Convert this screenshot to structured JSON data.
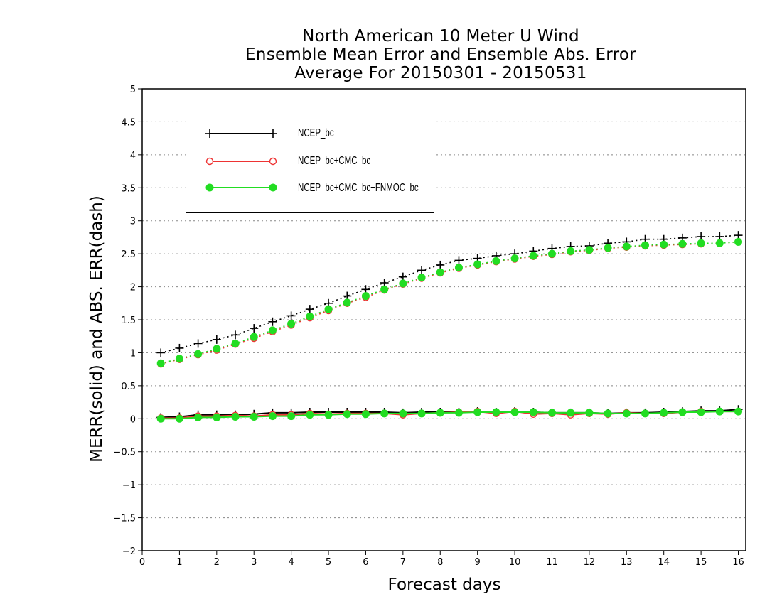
{
  "chart_data": {
    "type": "line",
    "title": [
      "North American 10 Meter U Wind",
      "Ensemble Mean Error and Ensemble Abs. Error",
      "Average For 20150301 - 20150531"
    ],
    "xlabel": "Forecast days",
    "ylabel": "MERR(solid) and ABS. ERR(dash)",
    "xlim": [
      0,
      16.2
    ],
    "ylim": [
      -2,
      5
    ],
    "xticks": [
      0,
      1,
      2,
      3,
      4,
      5,
      6,
      7,
      8,
      9,
      10,
      11,
      12,
      13,
      14,
      15,
      16
    ],
    "yticks": [
      -2,
      -1.5,
      -1,
      -0.5,
      0,
      0.5,
      1,
      1.5,
      2,
      2.5,
      3,
      3.5,
      4,
      4.5,
      5
    ],
    "grid": "horizontal dotted",
    "legend_position": "top-left",
    "x": [
      0.5,
      1,
      1.5,
      2,
      2.5,
      3,
      3.5,
      4,
      4.5,
      5,
      5.5,
      6,
      6.5,
      7,
      7.5,
      8,
      8.5,
      9,
      9.5,
      10,
      10.5,
      11,
      11.5,
      12,
      12.5,
      13,
      13.5,
      14,
      14.5,
      15,
      15.5,
      16
    ],
    "series": [
      {
        "name": "NCEP_bc",
        "color": "#000000",
        "marker": "plus",
        "merr": [
          0.02,
          0.03,
          0.06,
          0.06,
          0.06,
          0.07,
          0.09,
          0.09,
          0.1,
          0.1,
          0.1,
          0.1,
          0.1,
          0.09,
          0.1,
          0.1,
          0.1,
          0.11,
          0.1,
          0.11,
          0.1,
          0.09,
          0.09,
          0.09,
          0.08,
          0.09,
          0.09,
          0.1,
          0.11,
          0.12,
          0.12,
          0.14
        ],
        "abs_err": [
          1.0,
          1.07,
          1.14,
          1.2,
          1.27,
          1.37,
          1.47,
          1.56,
          1.66,
          1.75,
          1.86,
          1.96,
          2.06,
          2.15,
          2.25,
          2.33,
          2.4,
          2.43,
          2.47,
          2.5,
          2.54,
          2.58,
          2.61,
          2.62,
          2.66,
          2.68,
          2.72,
          2.72,
          2.74,
          2.76,
          2.76,
          2.78
        ]
      },
      {
        "name": "NCEP_bc+CMC_bc",
        "color": "#ee3333",
        "marker": "open-circle",
        "merr": [
          0.01,
          0.01,
          0.04,
          0.04,
          0.05,
          0.04,
          0.06,
          0.06,
          0.08,
          0.07,
          0.08,
          0.08,
          0.08,
          0.06,
          0.08,
          0.09,
          0.1,
          0.11,
          0.08,
          0.11,
          0.07,
          0.08,
          0.06,
          0.08,
          0.07,
          0.09,
          0.08,
          0.08,
          0.1,
          0.11,
          0.11,
          0.11
        ],
        "abs_err": [
          0.83,
          0.9,
          0.97,
          1.04,
          1.13,
          1.22,
          1.32,
          1.42,
          1.53,
          1.64,
          1.75,
          1.84,
          1.95,
          2.04,
          2.13,
          2.21,
          2.28,
          2.33,
          2.38,
          2.42,
          2.46,
          2.49,
          2.53,
          2.55,
          2.58,
          2.6,
          2.62,
          2.63,
          2.64,
          2.65,
          2.66,
          2.68
        ]
      },
      {
        "name": "NCEP_bc+CMC_bc+FNMOC_bc",
        "color": "#22dd22",
        "marker": "filled-circle",
        "merr": [
          0.0,
          0.0,
          0.02,
          0.02,
          0.03,
          0.03,
          0.04,
          0.04,
          0.06,
          0.06,
          0.07,
          0.07,
          0.08,
          0.08,
          0.08,
          0.09,
          0.09,
          0.1,
          0.1,
          0.1,
          0.1,
          0.09,
          0.09,
          0.09,
          0.08,
          0.08,
          0.08,
          0.09,
          0.1,
          0.1,
          0.11,
          0.11
        ],
        "abs_err": [
          0.84,
          0.91,
          0.98,
          1.06,
          1.14,
          1.24,
          1.34,
          1.44,
          1.55,
          1.66,
          1.76,
          1.86,
          1.96,
          2.05,
          2.14,
          2.22,
          2.29,
          2.34,
          2.39,
          2.43,
          2.47,
          2.5,
          2.54,
          2.56,
          2.59,
          2.61,
          2.63,
          2.64,
          2.65,
          2.66,
          2.66,
          2.68
        ]
      }
    ]
  }
}
